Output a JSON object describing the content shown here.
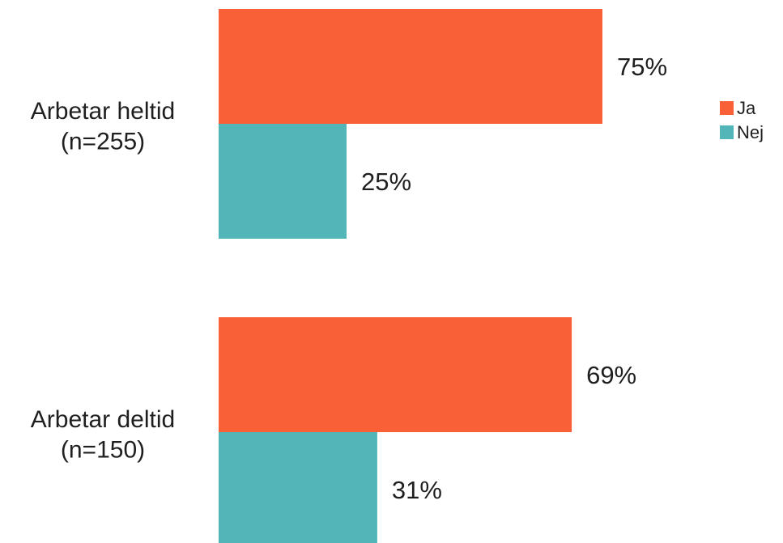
{
  "chart_data": {
    "type": "bar",
    "orientation": "horizontal",
    "categories": [
      [
        "Arbetar heltid",
        "(n=255)"
      ],
      [
        "Arbetar deltid",
        "(n=150)"
      ]
    ],
    "series": [
      {
        "name": "Ja",
        "values": [
          75,
          69
        ],
        "labels": [
          "75%",
          "69%"
        ],
        "color": "#fa6038"
      },
      {
        "name": "Nej",
        "values": [
          25,
          31
        ],
        "labels": [
          "25%",
          "31%"
        ],
        "color": "#52b6b9"
      }
    ],
    "xlim": [
      0,
      100
    ],
    "unit": "%",
    "grid": false,
    "legend": "right"
  }
}
